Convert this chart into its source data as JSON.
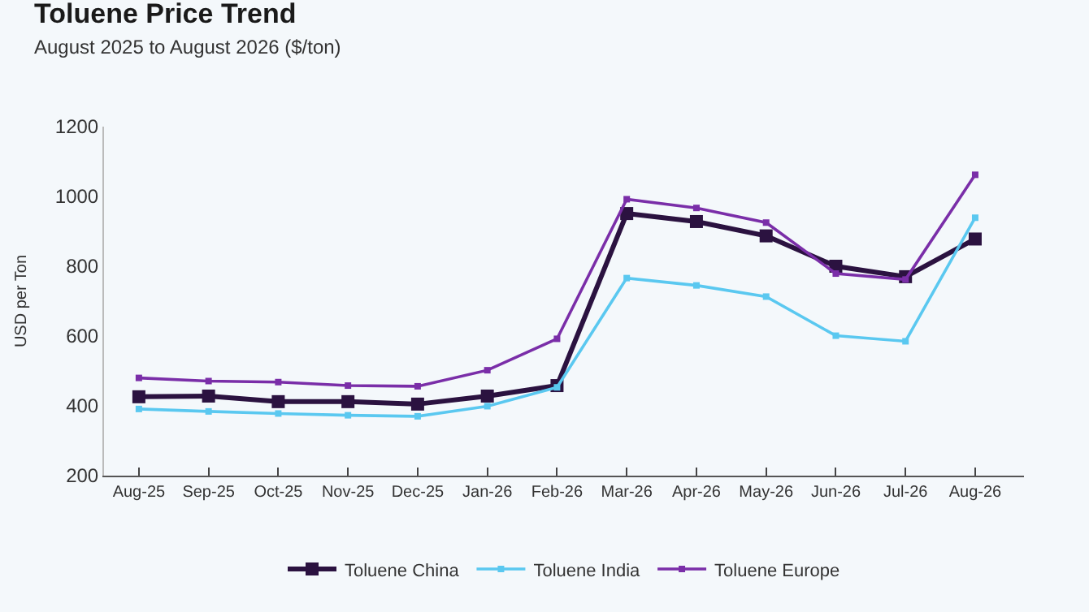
{
  "chart_data": {
    "type": "line",
    "title": "Toluene Price Trend",
    "subtitle": "August 2025 to August 2026 ($/ton)",
    "ylabel": "USD per Ton",
    "categories": [
      "Aug-25",
      "Sep-25",
      "Oct-25",
      "Nov-25",
      "Dec-25",
      "Jan-26",
      "Feb-26",
      "Mar-26",
      "Apr-26",
      "May-26",
      "Jun-26",
      "Jul-26",
      "Aug-26"
    ],
    "series": [
      {
        "name": "Toluene China",
        "color": "#2b1240",
        "values": [
          426,
          428,
          412,
          412,
          405,
          428,
          458,
          951,
          928,
          887,
          800,
          770,
          878
        ]
      },
      {
        "name": "Toluene India",
        "color": "#5ac8f0",
        "values": [
          391,
          384,
          378,
          373,
          370,
          399,
          453,
          766,
          745,
          713,
          601,
          585,
          939
        ]
      },
      {
        "name": "Toluene Europe",
        "color": "#7a2ea8",
        "values": [
          480,
          471,
          468,
          458,
          456,
          502,
          592,
          992,
          967,
          925,
          779,
          762,
          1062
        ]
      }
    ],
    "ylim": [
      200,
      1200
    ],
    "yticks": [
      200,
      400,
      600,
      800,
      1000,
      1200
    ],
    "grid": false,
    "legend": "bottom",
    "marker": "square",
    "line_style": "solid"
  }
}
